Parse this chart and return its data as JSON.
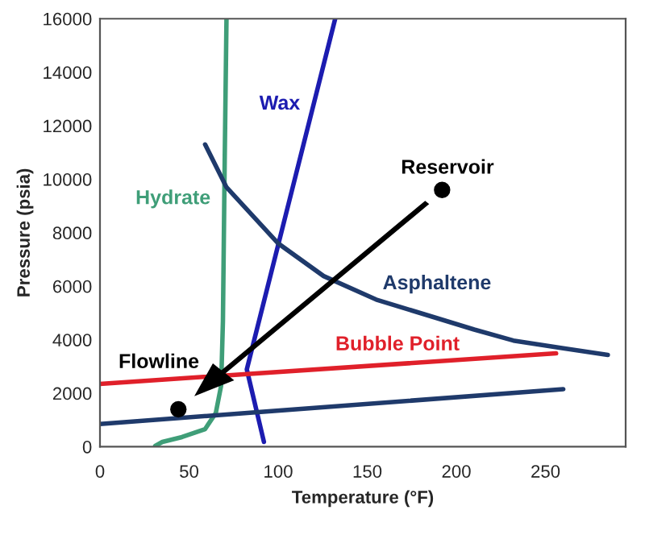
{
  "chart_data": {
    "type": "line",
    "xlabel": "Temperature (°F)",
    "ylabel": "Pressure (psia)",
    "xlim": [
      0,
      295
    ],
    "ylim": [
      0,
      16000
    ],
    "xticks": [
      0,
      50,
      100,
      150,
      200,
      250
    ],
    "yticks": [
      0,
      2000,
      4000,
      6000,
      8000,
      10000,
      12000,
      14000,
      16000
    ],
    "grid": false,
    "line_style": "solid",
    "series": [
      {
        "name": "Hydrate",
        "color": "#3f9e78",
        "x": [
          31,
          35,
          46,
          59,
          65,
          68,
          69,
          70,
          71
        ],
        "values": [
          30,
          180,
          360,
          660,
          1260,
          2290,
          4700,
          10700,
          16000
        ]
      },
      {
        "name": "Wax",
        "color": "#1c1cb0",
        "x": [
          92,
          82.4,
          132
        ],
        "values": [
          180,
          2890,
          16000
        ]
      },
      {
        "name": "Asphaltene",
        "color": "#1f3a6b",
        "x": [
          59,
          71,
          100,
          125.5,
          155,
          186,
          210,
          232,
          260,
          285
        ],
        "values": [
          11300,
          9700,
          7600,
          6380,
          5500,
          4870,
          4380,
          3970,
          3680,
          3430
        ]
      },
      {
        "name": "Bubble Point",
        "color": "#e0202a",
        "x": [
          0,
          256
        ],
        "values": [
          2350,
          3490
        ]
      },
      {
        "name": "Reservoir",
        "type": "scatter",
        "color": "#000000",
        "x": [
          192
        ],
        "values": [
          9600
        ]
      },
      {
        "type": "scatter",
        "color": "#000000",
        "x": [
          44
        ],
        "values": [
          1400
        ]
      },
      {
        "color": "#1f3a6b",
        "x": [
          0,
          260
        ],
        "values": [
          850,
          2150
        ]
      }
    ],
    "annotations": [
      "Flowline"
    ]
  }
}
